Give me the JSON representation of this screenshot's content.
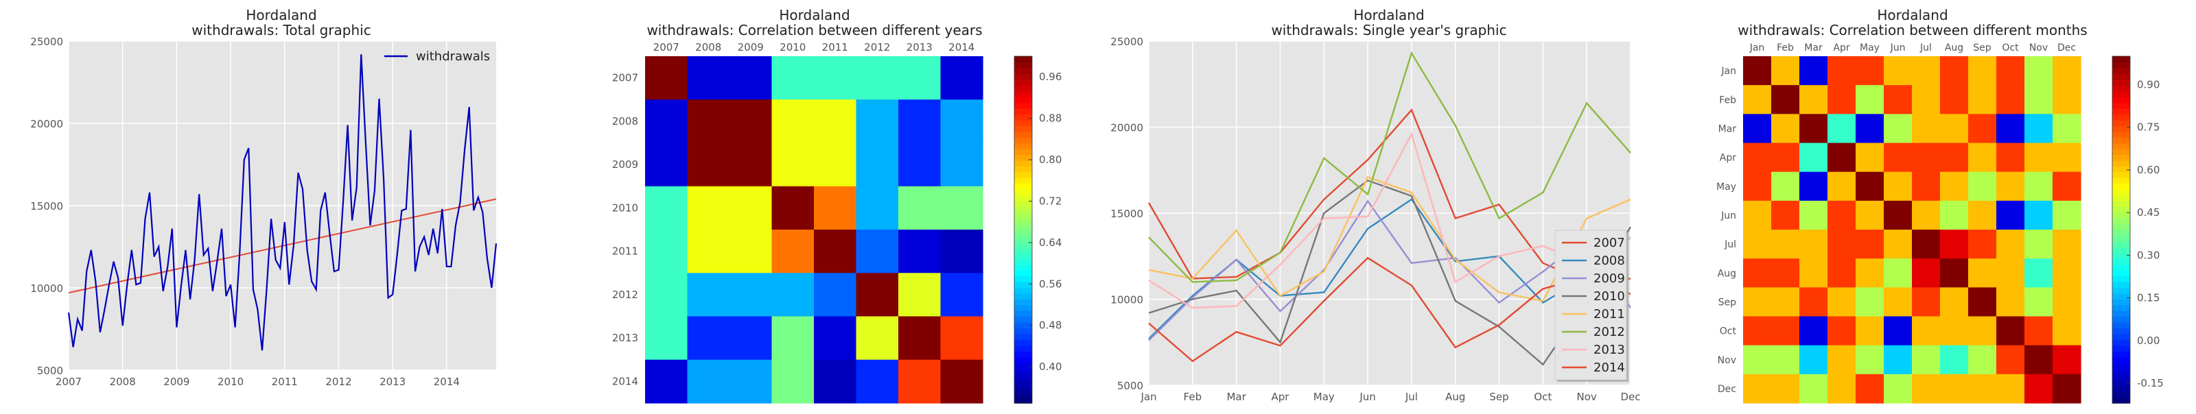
{
  "colors": {
    "panel_bg": "#e5e5e5",
    "grid": "#ffffff",
    "total_line": "#0000bb",
    "trend_line": "#e24a33",
    "text": "#222222",
    "tick_text": "#555555"
  },
  "chart_data": [
    {
      "type": "line",
      "title_line1": "Hordaland",
      "title_line2": "withdrawals: Total graphic",
      "xlim": [
        "2007-01",
        "2014-12"
      ],
      "ylim": [
        5000,
        25000
      ],
      "grid": true,
      "legend_position": "top-right",
      "x_ticks": [
        "2007",
        "2008",
        "2009",
        "2010",
        "2011",
        "2012",
        "2013",
        "2014"
      ],
      "y_ticks": [
        "5000",
        "10000",
        "15000",
        "20000",
        "25000"
      ],
      "y_tick_values": [
        5000,
        10000,
        15000,
        20000,
        25000
      ],
      "series": [
        {
          "name": "withdrawals",
          "start": "2007-01",
          "step": "month",
          "values": [
            8500,
            6400,
            8100,
            7400,
            11000,
            12300,
            10400,
            7300,
            8700,
            10200,
            11600,
            10600,
            7700,
            10200,
            12300,
            10200,
            10300,
            14200,
            15800,
            11900,
            12500,
            9800,
            11300,
            13600,
            7600,
            10100,
            12300,
            9300,
            11700,
            15700,
            12000,
            12400,
            9800,
            11600,
            13600,
            9500,
            10200,
            7600,
            12100,
            17800,
            18500,
            9900,
            8700,
            6200,
            9900,
            14200,
            11700,
            11200,
            14000,
            10200,
            12600,
            17000,
            16000,
            12300,
            10400,
            9900,
            14700,
            15800,
            13300,
            11000,
            11100,
            15200,
            19900,
            14100,
            16100,
            24200,
            18900,
            13800,
            15900,
            21500,
            16600,
            9400,
            9600,
            12000,
            14700,
            14800,
            19600,
            11000,
            12500,
            13100,
            12000,
            13600,
            12100,
            14800,
            11300,
            11300,
            13800,
            15200,
            18400,
            21000,
            14700,
            15500,
            14600,
            11800,
            10000,
            12700
          ]
        }
      ],
      "trend": {
        "start": 9700,
        "end": 15400
      }
    },
    {
      "type": "heatmap",
      "title_line1": "Hordaland",
      "title_line2": "withdrawals: Correlation between different years",
      "labels": [
        "2007",
        "2008",
        "2009",
        "2010",
        "2011",
        "2012",
        "2013",
        "2014"
      ],
      "matrix": [
        [
          1.0,
          0.39,
          0.39,
          0.62,
          0.62,
          0.62,
          0.62,
          0.39
        ],
        [
          0.39,
          1.0,
          1.0,
          0.74,
          0.74,
          0.53,
          0.44,
          0.52
        ],
        [
          0.39,
          1.0,
          1.0,
          0.74,
          0.74,
          0.53,
          0.44,
          0.52
        ],
        [
          0.62,
          0.74,
          0.74,
          1.0,
          0.84,
          0.53,
          0.66,
          0.66
        ],
        [
          0.62,
          0.74,
          0.74,
          0.84,
          1.0,
          0.48,
          0.39,
          0.37
        ],
        [
          0.62,
          0.53,
          0.53,
          0.53,
          0.48,
          1.0,
          0.73,
          0.44
        ],
        [
          0.62,
          0.44,
          0.44,
          0.66,
          0.39,
          0.73,
          1.0,
          0.88
        ],
        [
          0.39,
          0.52,
          0.52,
          0.66,
          0.37,
          0.44,
          0.88,
          1.0
        ]
      ],
      "colorbar_min": 0.33,
      "colorbar_max": 1.0,
      "colorbar_ticks": [
        "0.40",
        "0.48",
        "0.56",
        "0.64",
        "0.72",
        "0.80",
        "0.88",
        "0.96"
      ],
      "colorbar_tick_values": [
        0.4,
        0.48,
        0.56,
        0.64,
        0.72,
        0.8,
        0.88,
        0.96
      ]
    },
    {
      "type": "line",
      "title_line1": "Hordaland",
      "title_line2": "withdrawals: Single year's graphic",
      "ylim": [
        5000,
        25000
      ],
      "grid": true,
      "legend_position": "lower-right",
      "x_ticks": [
        "Jan",
        "Feb",
        "Mar",
        "Apr",
        "May",
        "Jun",
        "Jul",
        "Aug",
        "Sep",
        "Oct",
        "Nov",
        "Dec"
      ],
      "y_ticks": [
        "5000",
        "10000",
        "15000",
        "20000",
        "25000"
      ],
      "y_tick_values": [
        5000,
        10000,
        15000,
        20000,
        25000
      ],
      "series": [
        {
          "name": "2007",
          "color": "#e24a33",
          "values": [
            15600,
            11200,
            11300,
            12700,
            15800,
            18100,
            21000,
            14700,
            15500,
            12100,
            11000,
            11200
          ]
        },
        {
          "name": "2008",
          "color": "#348abd",
          "values": [
            7700,
            10200,
            12300,
            10200,
            10400,
            14100,
            15800,
            12200,
            12500,
            9800,
            11300,
            13600
          ]
        },
        {
          "name": "2009",
          "color": "#988ed5",
          "values": [
            7600,
            10100,
            12300,
            9300,
            11700,
            15700,
            12100,
            12400,
            9800,
            11600,
            13600,
            9500
          ]
        },
        {
          "name": "2010",
          "color": "#777777",
          "values": [
            9200,
            10000,
            10500,
            7500,
            15000,
            16900,
            16000,
            9900,
            8400,
            6200,
            9900,
            14200
          ]
        },
        {
          "name": "2011",
          "color": "#fbc15e",
          "values": [
            11700,
            11200,
            14000,
            10200,
            11600,
            17100,
            16200,
            12300,
            10400,
            9900,
            14700,
            15800
          ]
        },
        {
          "name": "2012",
          "color": "#8eba42",
          "values": [
            13600,
            11000,
            11100,
            12700,
            18200,
            16100,
            24300,
            20100,
            14700,
            16200,
            21400,
            18500
          ]
        },
        {
          "name": "2013",
          "color": "#ffb5b8",
          "values": [
            11100,
            9500,
            9600,
            12000,
            14700,
            14800,
            19600,
            11000,
            12500,
            13100,
            12000,
            13600
          ]
        },
        {
          "name": "2014",
          "color": "#e24a33",
          "values": [
            8600,
            6400,
            8100,
            7300,
            9900,
            12400,
            10800,
            7200,
            8500,
            10600,
            11300,
            10300
          ]
        }
      ]
    },
    {
      "type": "heatmap",
      "title_line1": "Hordaland",
      "title_line2": "withdrawals: Correlation between different months",
      "labels": [
        "Jan",
        "Feb",
        "Mar",
        "Apr",
        "May",
        "Jun",
        "Jul",
        "Aug",
        "Sep",
        "Oct",
        "Nov",
        "Dec"
      ],
      "matrix": [
        [
          1.0,
          0.62,
          -0.1,
          0.78,
          0.78,
          0.62,
          0.62,
          0.78,
          0.62,
          0.78,
          0.45,
          0.62
        ],
        [
          0.62,
          1.0,
          0.62,
          0.78,
          0.45,
          0.78,
          0.62,
          0.78,
          0.62,
          0.78,
          0.45,
          0.62
        ],
        [
          -0.1,
          0.62,
          1.0,
          0.3,
          -0.1,
          0.45,
          0.62,
          0.62,
          0.78,
          -0.1,
          0.18,
          0.45
        ],
        [
          0.78,
          0.78,
          0.3,
          1.0,
          0.62,
          0.78,
          0.78,
          0.78,
          0.62,
          0.78,
          0.62,
          0.62
        ],
        [
          0.78,
          0.45,
          -0.1,
          0.62,
          1.0,
          0.62,
          0.78,
          0.62,
          0.45,
          0.62,
          0.45,
          0.78
        ],
        [
          0.62,
          0.78,
          0.45,
          0.78,
          0.62,
          1.0,
          0.62,
          0.45,
          0.62,
          -0.1,
          0.18,
          0.45
        ],
        [
          0.62,
          0.62,
          0.62,
          0.78,
          0.78,
          0.62,
          1.0,
          0.88,
          0.78,
          0.62,
          0.45,
          0.62
        ],
        [
          0.78,
          0.78,
          0.62,
          0.78,
          0.62,
          0.45,
          0.88,
          1.0,
          0.62,
          0.62,
          0.3,
          0.62
        ],
        [
          0.62,
          0.62,
          0.78,
          0.62,
          0.45,
          0.62,
          0.78,
          0.62,
          1.0,
          0.62,
          0.45,
          0.62
        ],
        [
          0.78,
          0.78,
          -0.1,
          0.78,
          0.62,
          -0.1,
          0.62,
          0.62,
          0.62,
          1.0,
          0.78,
          0.62
        ],
        [
          0.45,
          0.45,
          0.18,
          0.62,
          0.45,
          0.18,
          0.45,
          0.3,
          0.45,
          0.78,
          1.0,
          0.88
        ],
        [
          0.62,
          0.62,
          0.45,
          0.62,
          0.78,
          0.45,
          0.62,
          0.62,
          0.62,
          0.62,
          0.88,
          1.0
        ]
      ],
      "colorbar_min": -0.22,
      "colorbar_max": 1.0,
      "colorbar_ticks": [
        "-0.15",
        "0.00",
        "0.15",
        "0.30",
        "0.45",
        "0.60",
        "0.75",
        "0.90"
      ],
      "colorbar_tick_values": [
        -0.15,
        0.0,
        0.15,
        0.3,
        0.45,
        0.6,
        0.75,
        0.9
      ]
    }
  ]
}
